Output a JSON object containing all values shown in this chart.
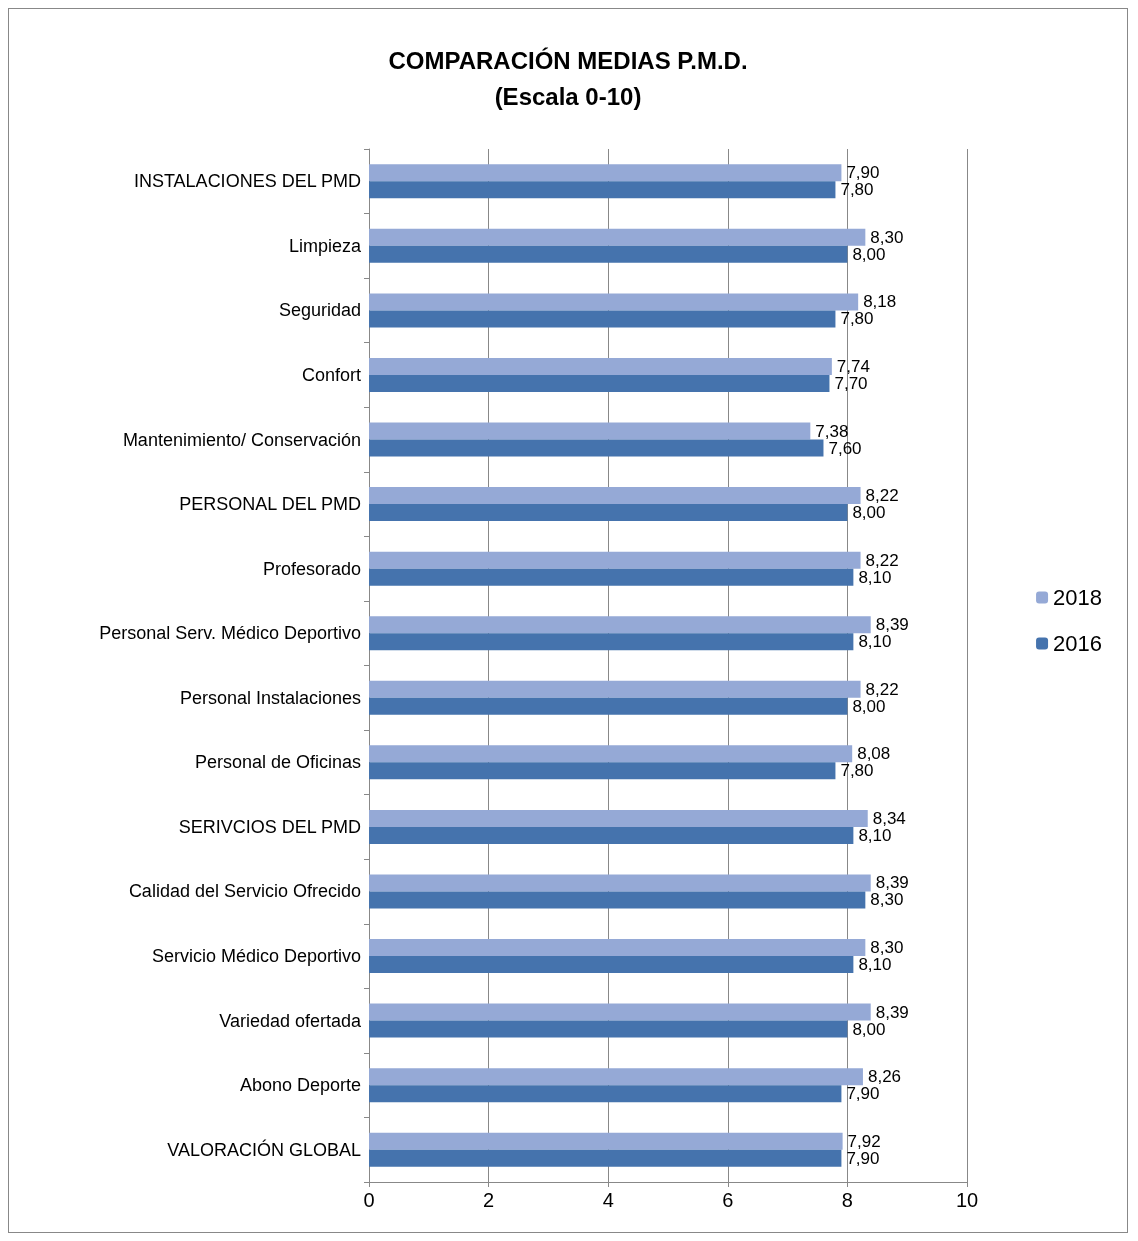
{
  "chart_data": {
    "type": "bar",
    "orientation": "horizontal",
    "title": "COMPARACIÓN MEDIAS P.M.D.\n(Escala 0-10)",
    "categories": [
      "INSTALACIONES DEL PMD",
      "Limpieza",
      "Seguridad",
      "Confort",
      "Mantenimiento/ Conservación",
      "PERSONAL DEL PMD",
      "Profesorado",
      "Personal Serv. Médico Deportivo",
      "Personal Instalaciones",
      "Personal de Oficinas",
      "SERIVCIOS DEL PMD",
      "Calidad del Servicio Ofrecido",
      "Servicio Médico Deportivo",
      "Variedad ofertada",
      "Abono Deporte",
      "VALORACIÓN GLOBAL"
    ],
    "series": [
      {
        "name": "2018",
        "color": "#95a9d6",
        "values": [
          7.9,
          8.3,
          8.18,
          7.74,
          7.38,
          8.22,
          8.22,
          8.39,
          8.22,
          8.08,
          8.34,
          8.39,
          8.3,
          8.39,
          8.26,
          7.92
        ],
        "value_labels": [
          "7,90",
          "8,30",
          "8,18",
          "7,74",
          "7,38",
          "8,22",
          "8,22",
          "8,39",
          "8,22",
          "8,08",
          "8,34",
          "8,39",
          "8,30",
          "8,39",
          "8,26",
          "7,92"
        ]
      },
      {
        "name": "2016",
        "color": "#4573ad",
        "values": [
          7.8,
          8.0,
          7.8,
          7.7,
          7.6,
          8.0,
          8.1,
          8.1,
          8.0,
          7.8,
          8.1,
          8.3,
          8.1,
          8.0,
          7.9,
          7.9
        ],
        "value_labels": [
          "7,80",
          "8,00",
          "7,80",
          "7,70",
          "7,60",
          "8,00",
          "8,10",
          "8,10",
          "8,00",
          "7,80",
          "8,10",
          "8,30",
          "8,10",
          "8,00",
          "7,90",
          "7,90"
        ]
      }
    ],
    "xlim": [
      0,
      10
    ],
    "xticks": [
      0,
      2,
      4,
      6,
      8,
      10
    ],
    "grid": "x",
    "legend": "right"
  }
}
